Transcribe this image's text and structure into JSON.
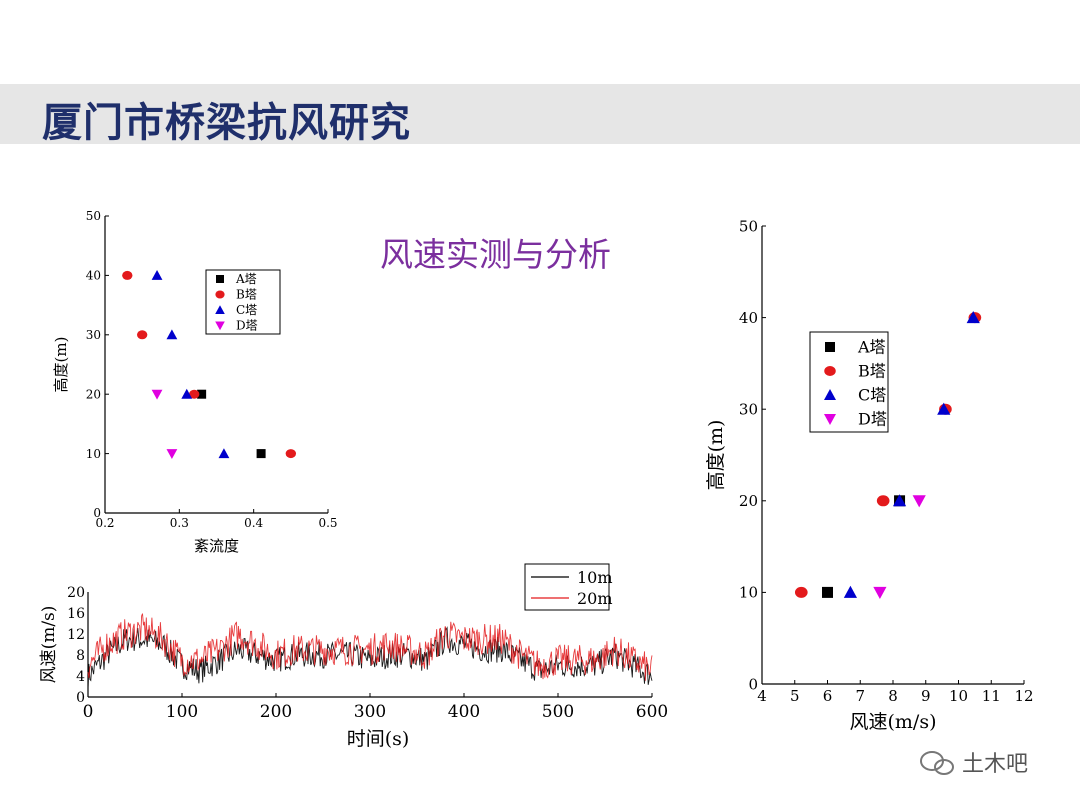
{
  "page": {
    "title": "厦门市桥梁抗风研究",
    "subtitle": "风速实测与分析",
    "watermark": "土木吧"
  },
  "colors": {
    "title": "#1f2f6b",
    "subtitle": "#7b2f9e",
    "band": "#e6e6e6",
    "A": "#000000",
    "B": "#e31a1c",
    "C": "#0000cc",
    "D": "#e000e0",
    "line10": "#000000",
    "line20": "#e31a1c"
  },
  "chart_data": [
    {
      "id": "turbulence",
      "type": "scatter",
      "xlabel": "紊流度",
      "ylabel": "高度(m)",
      "xlim": [
        0.2,
        0.5
      ],
      "ylim": [
        0,
        50
      ],
      "xticks": [
        "0.2",
        "0.3",
        "0.4",
        "0.5"
      ],
      "yticks": [
        "0",
        "10",
        "20",
        "30",
        "40",
        "50"
      ],
      "legend_position": "top-right",
      "series": [
        {
          "name": "A塔",
          "marker": "square",
          "points": [
            [
              0.41,
              10
            ],
            [
              0.33,
              20
            ]
          ]
        },
        {
          "name": "B塔",
          "marker": "circle",
          "points": [
            [
              0.45,
              10
            ],
            [
              0.32,
              20
            ],
            [
              0.25,
              30
            ],
            [
              0.23,
              40
            ]
          ]
        },
        {
          "name": "C塔",
          "marker": "triangle-up",
          "points": [
            [
              0.36,
              10
            ],
            [
              0.31,
              20
            ],
            [
              0.29,
              30
            ],
            [
              0.27,
              40
            ]
          ]
        },
        {
          "name": "D塔",
          "marker": "triangle-down",
          "points": [
            [
              0.29,
              10
            ],
            [
              0.27,
              20
            ]
          ]
        }
      ]
    },
    {
      "id": "windprofile",
      "type": "scatter",
      "xlabel": "风速(m/s)",
      "ylabel": "高度(m)",
      "xlim": [
        4,
        12
      ],
      "ylim": [
        0,
        50
      ],
      "xticks": [
        "4",
        "5",
        "6",
        "7",
        "8",
        "9",
        "10",
        "11",
        "12"
      ],
      "yticks": [
        "0",
        "10",
        "20",
        "30",
        "40",
        "50"
      ],
      "legend_position": "top-left",
      "series": [
        {
          "name": "A塔",
          "marker": "square",
          "points": [
            [
              6.0,
              10
            ],
            [
              8.2,
              20
            ]
          ]
        },
        {
          "name": "B塔",
          "marker": "circle",
          "points": [
            [
              5.2,
              10
            ],
            [
              7.7,
              20
            ],
            [
              9.6,
              30
            ],
            [
              10.5,
              40
            ]
          ]
        },
        {
          "name": "C塔",
          "marker": "triangle-up",
          "points": [
            [
              6.7,
              10
            ],
            [
              8.2,
              20
            ],
            [
              9.55,
              30
            ],
            [
              10.45,
              40
            ]
          ]
        },
        {
          "name": "D塔",
          "marker": "triangle-down",
          "points": [
            [
              7.6,
              10
            ],
            [
              8.8,
              20
            ]
          ]
        }
      ]
    },
    {
      "id": "timeseries",
      "type": "line",
      "xlabel": "时间(s)",
      "ylabel": "风速(m/s)",
      "xlim": [
        0,
        600
      ],
      "ylim": [
        0,
        20
      ],
      "xticks": [
        "0",
        "100",
        "200",
        "300",
        "400",
        "500",
        "600"
      ],
      "yticks": [
        "0",
        "4",
        "8",
        "12",
        "16",
        "20"
      ],
      "legend_position": "top-right",
      "series": [
        {
          "name": "10m",
          "envelope": [
            [
              0,
              4
            ],
            [
              20,
              8
            ],
            [
              40,
              11
            ],
            [
              60,
              11
            ],
            [
              80,
              10
            ],
            [
              100,
              6
            ],
            [
              120,
              5
            ],
            [
              140,
              7
            ],
            [
              160,
              9
            ],
            [
              180,
              8
            ],
            [
              200,
              7
            ],
            [
              220,
              8
            ],
            [
              240,
              8
            ],
            [
              260,
              8
            ],
            [
              280,
              8
            ],
            [
              300,
              7
            ],
            [
              320,
              8
            ],
            [
              340,
              8
            ],
            [
              360,
              7
            ],
            [
              380,
              11
            ],
            [
              400,
              10
            ],
            [
              420,
              9
            ],
            [
              440,
              9
            ],
            [
              460,
              7
            ],
            [
              480,
              5
            ],
            [
              500,
              6
            ],
            [
              520,
              6
            ],
            [
              540,
              6
            ],
            [
              560,
              8
            ],
            [
              580,
              6
            ],
            [
              600,
              4
            ]
          ]
        },
        {
          "name": "20m",
          "envelope": [
            [
              0,
              6
            ],
            [
              20,
              10
            ],
            [
              40,
              12
            ],
            [
              60,
              13
            ],
            [
              80,
              11
            ],
            [
              100,
              7
            ],
            [
              120,
              7
            ],
            [
              140,
              9
            ],
            [
              160,
              12
            ],
            [
              180,
              10
            ],
            [
              200,
              8
            ],
            [
              220,
              9
            ],
            [
              240,
              9
            ],
            [
              260,
              9
            ],
            [
              280,
              9
            ],
            [
              300,
              9
            ],
            [
              320,
              10
            ],
            [
              340,
              9
            ],
            [
              360,
              8
            ],
            [
              380,
              12
            ],
            [
              400,
              11
            ],
            [
              420,
              11
            ],
            [
              440,
              11
            ],
            [
              460,
              8
            ],
            [
              480,
              6
            ],
            [
              500,
              7
            ],
            [
              520,
              7
            ],
            [
              540,
              7
            ],
            [
              560,
              9
            ],
            [
              580,
              7
            ],
            [
              600,
              5
            ]
          ]
        }
      ]
    }
  ]
}
